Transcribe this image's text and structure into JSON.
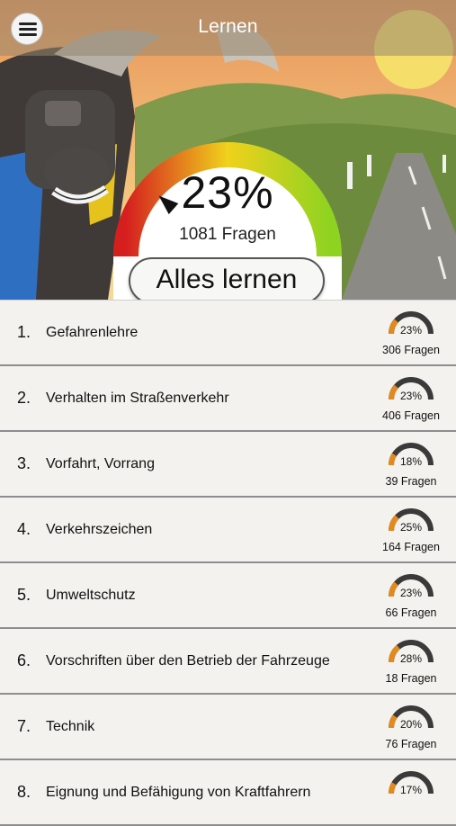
{
  "header": {
    "title": "Lernen",
    "overall_percent": "23%",
    "overall_progress": 0.23,
    "question_count": "1081 Fragen",
    "learn_all_label": "Alles lernen"
  },
  "icons": {
    "menu": "hamburger-menu-icon"
  },
  "colors": {
    "gauge_start": "#d51f1f",
    "gauge_mid": "#f0d21c",
    "gauge_end": "#8fd321",
    "mini_fill": "#e38a1e",
    "mini_track": "#3a3a3a"
  },
  "categories": [
    {
      "num": "1.",
      "label": "Gefahrenlehre",
      "percent": "23%",
      "progress": 0.23,
      "count": "306 Fragen"
    },
    {
      "num": "2.",
      "label": "Verhalten im Straßenverkehr",
      "percent": "23%",
      "progress": 0.23,
      "count": "406 Fragen"
    },
    {
      "num": "3.",
      "label": "Vorfahrt, Vorrang",
      "percent": "18%",
      "progress": 0.18,
      "count": "39 Fragen"
    },
    {
      "num": "4.",
      "label": "Verkehrszeichen",
      "percent": "25%",
      "progress": 0.25,
      "count": "164 Fragen"
    },
    {
      "num": "5.",
      "label": "Umweltschutz",
      "percent": "23%",
      "progress": 0.23,
      "count": "66 Fragen"
    },
    {
      "num": "6.",
      "label": "Vorschriften über den Betrieb der Fahrzeuge",
      "percent": "28%",
      "progress": 0.28,
      "count": "18 Fragen"
    },
    {
      "num": "7.",
      "label": "Technik",
      "percent": "20%",
      "progress": 0.2,
      "count": "76 Fragen"
    },
    {
      "num": "8.",
      "label": "Eignung und Befähigung von Kraftfahrern",
      "percent": "17%",
      "progress": 0.17,
      "count": ""
    }
  ]
}
